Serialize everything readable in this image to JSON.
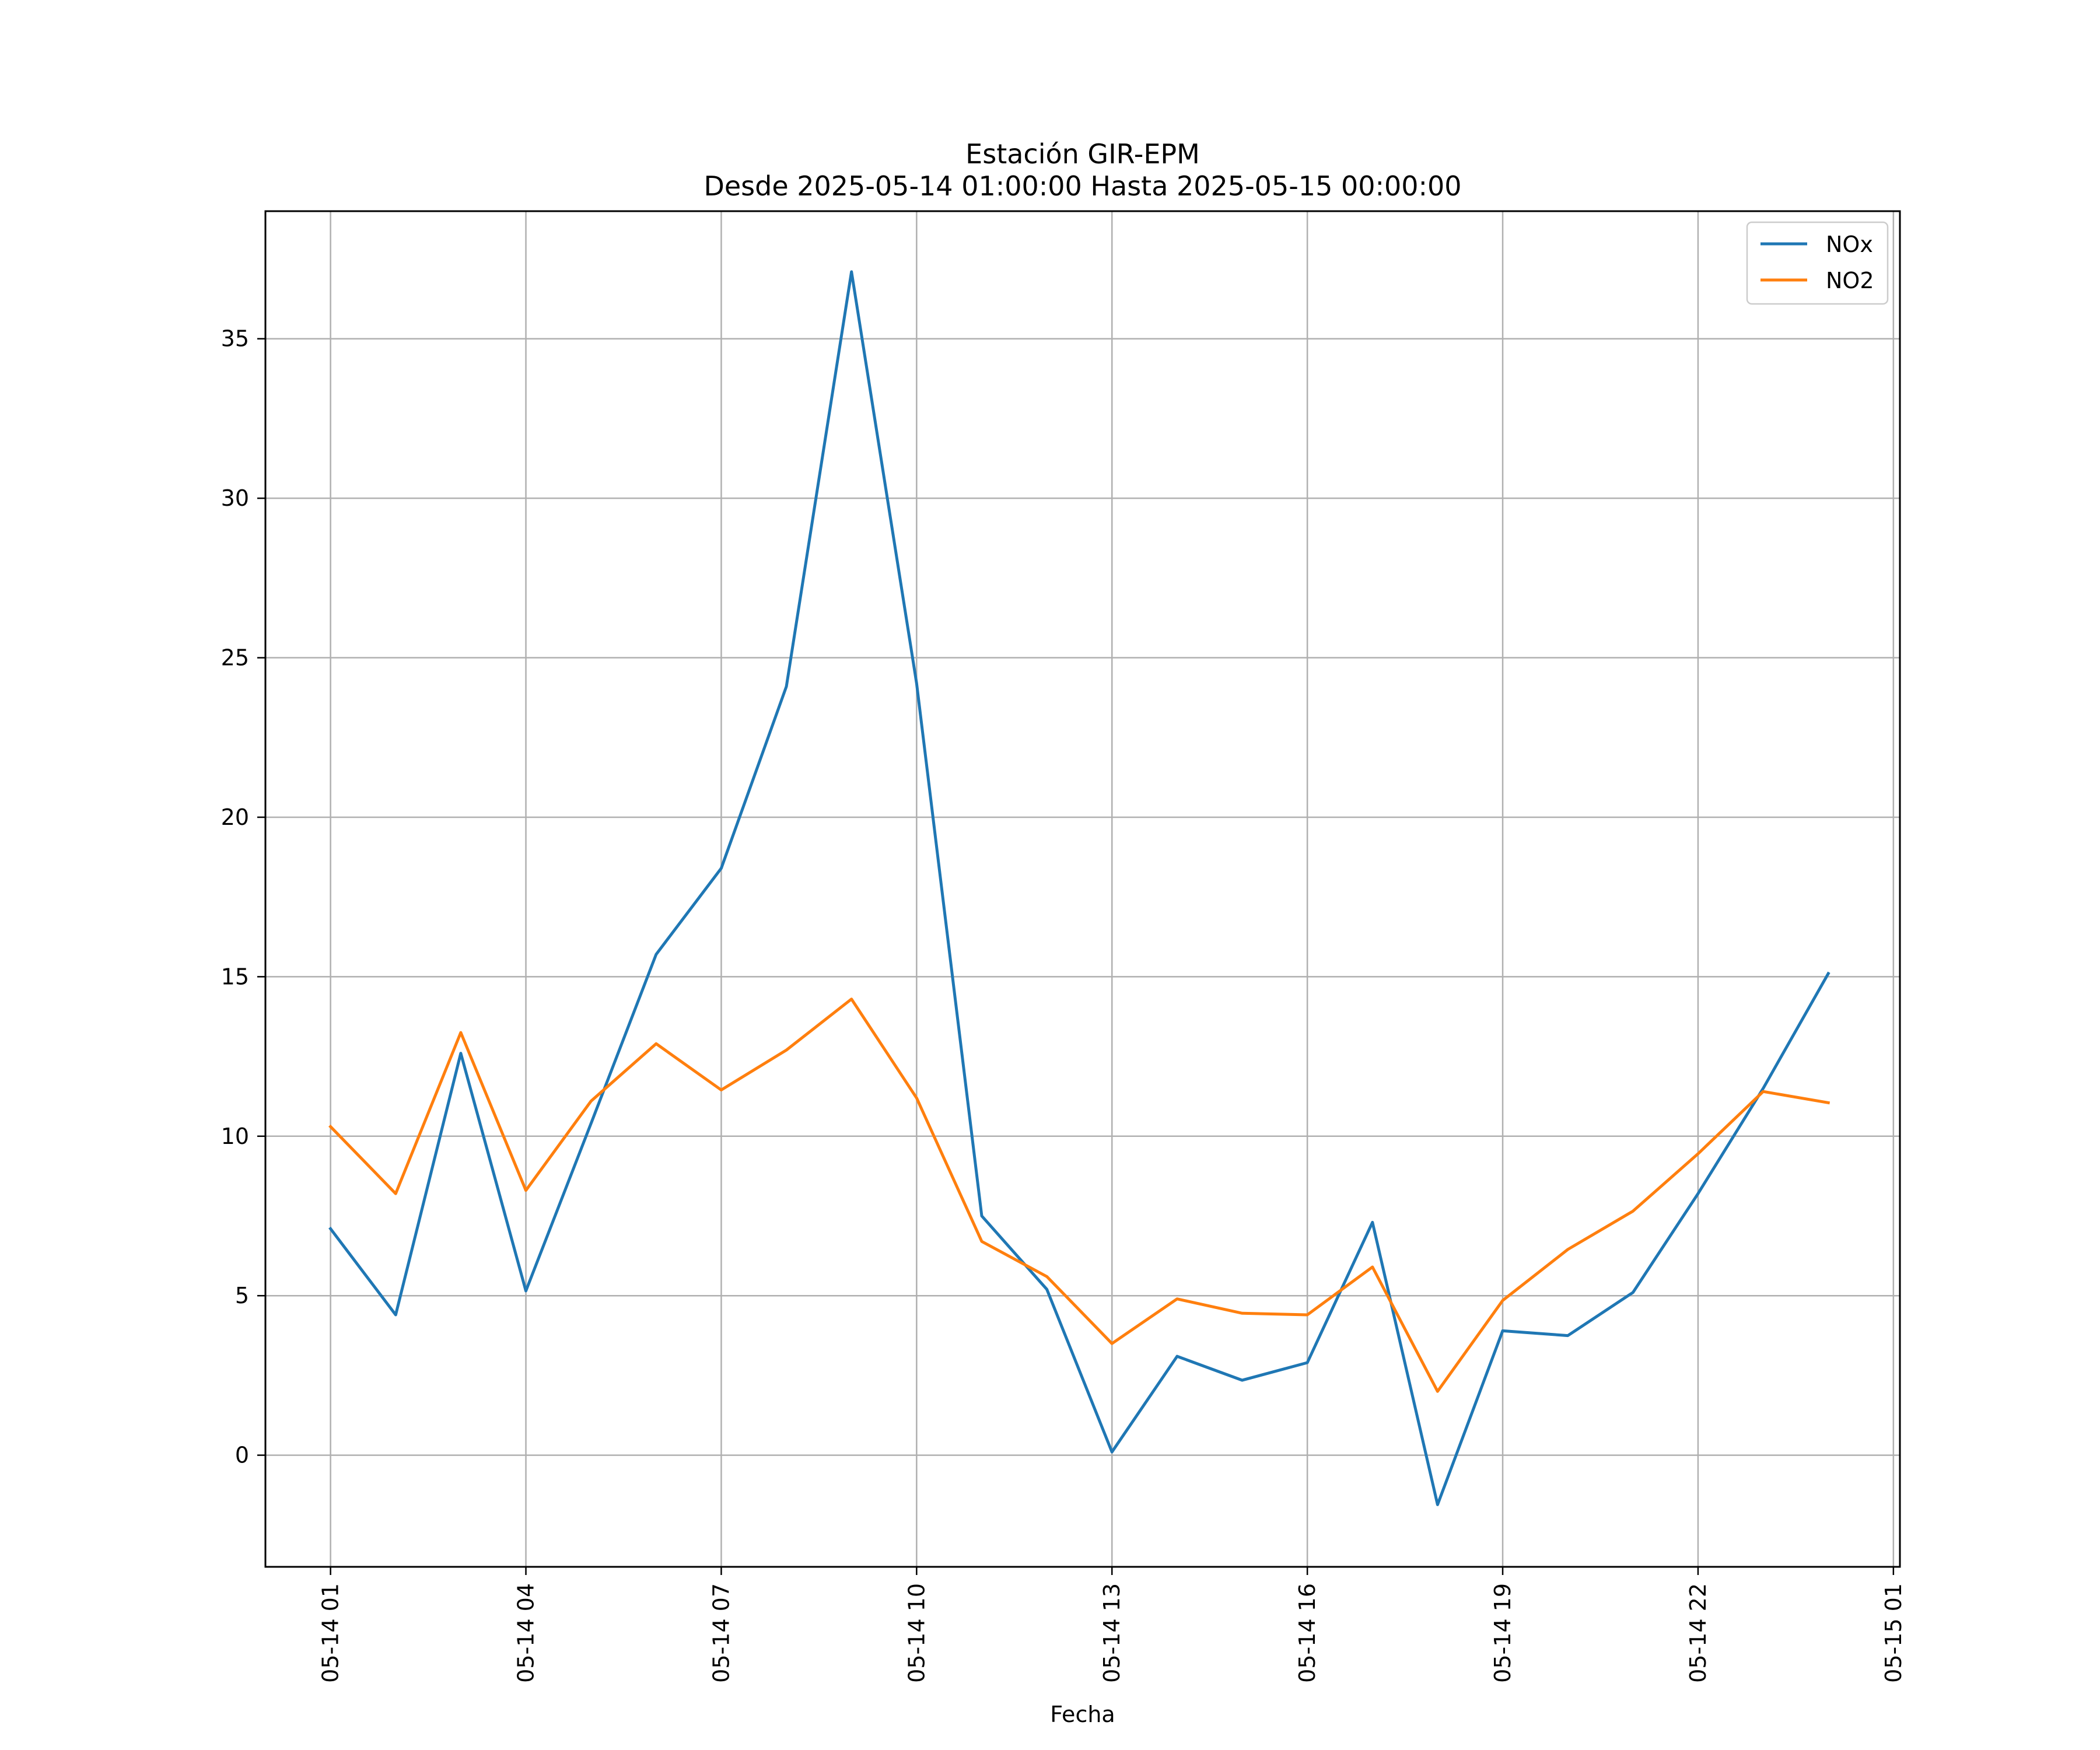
{
  "chart_data": {
    "type": "line",
    "title": "Estación GIR-EPM",
    "subtitle": "Desde 2025-05-14 01:00:00 Hasta 2025-05-15 00:00:00",
    "xlabel": "Fecha",
    "ylabel": "",
    "x": [
      "2025-05-14 01:00",
      "2025-05-14 02:00",
      "2025-05-14 03:00",
      "2025-05-14 04:00",
      "2025-05-14 05:00",
      "2025-05-14 06:00",
      "2025-05-14 07:00",
      "2025-05-14 08:00",
      "2025-05-14 09:00",
      "2025-05-14 10:00",
      "2025-05-14 11:00",
      "2025-05-14 12:00",
      "2025-05-14 13:00",
      "2025-05-14 14:00",
      "2025-05-14 15:00",
      "2025-05-14 16:00",
      "2025-05-14 17:00",
      "2025-05-14 18:00",
      "2025-05-14 19:00",
      "2025-05-14 20:00",
      "2025-05-14 21:00",
      "2025-05-14 22:00",
      "2025-05-14 23:00",
      "2025-05-15 00:00"
    ],
    "xlim": [
      "2025-05-14 00:00",
      "2025-05-15 01:06"
    ],
    "ylim": [
      -3.5,
      39
    ],
    "x_ticks": [
      "2025-05-14 01:00",
      "2025-05-14 04:00",
      "2025-05-14 07:00",
      "2025-05-14 10:00",
      "2025-05-14 13:00",
      "2025-05-14 16:00",
      "2025-05-14 19:00",
      "2025-05-14 22:00",
      "2025-05-15 01:00"
    ],
    "x_tick_labels": [
      "05-14 01",
      "05-14 04",
      "05-14 07",
      "05-14 10",
      "05-14 13",
      "05-14 16",
      "05-14 19",
      "05-14 22",
      "05-15 01"
    ],
    "y_ticks": [
      0,
      5,
      10,
      15,
      20,
      25,
      30,
      35
    ],
    "y_tick_labels": [
      "0",
      "5",
      "10",
      "15",
      "20",
      "25",
      "30",
      "35"
    ],
    "grid": true,
    "legend_position": "top-right",
    "series": [
      {
        "name": "NOx",
        "color": "#1f77b4",
        "values": [
          7.1,
          4.4,
          12.6,
          5.15,
          10.4,
          15.7,
          18.4,
          24.1,
          37.1,
          24.2,
          7.5,
          5.2,
          0.1,
          3.1,
          2.35,
          2.9,
          7.3,
          -1.55,
          3.9,
          3.75,
          5.1,
          8.2,
          11.5,
          15.1
        ]
      },
      {
        "name": "NO2",
        "color": "#ff7f0e",
        "values": [
          10.3,
          8.2,
          13.25,
          8.3,
          11.1,
          12.9,
          11.45,
          12.7,
          14.3,
          11.2,
          6.7,
          5.6,
          3.5,
          4.9,
          4.45,
          4.4,
          5.9,
          2.0,
          4.85,
          6.45,
          7.65,
          9.45,
          11.4,
          11.05
        ]
      }
    ]
  }
}
